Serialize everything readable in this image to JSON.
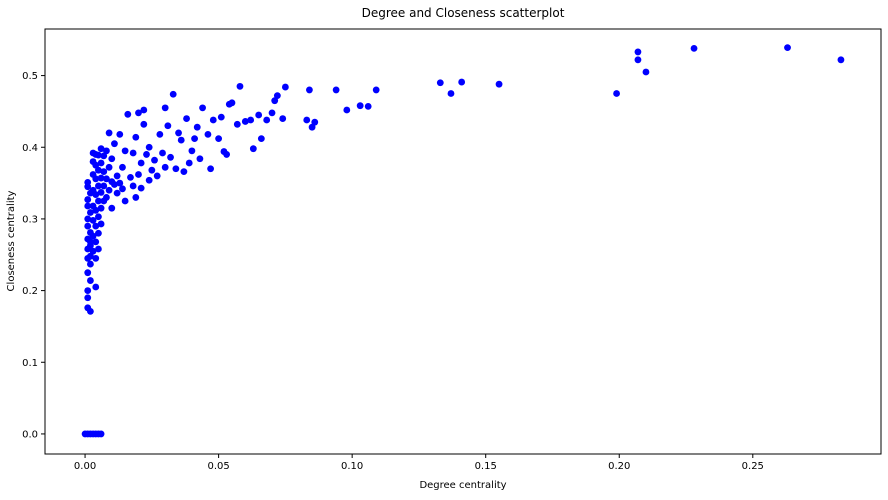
{
  "chart_data": {
    "type": "scatter",
    "title": "Degree and Closeness scatterplot",
    "xlabel": "Degree centrality",
    "ylabel": "Closeness centrality",
    "xlim": [
      -0.015,
      0.298
    ],
    "ylim": [
      -0.028,
      0.565
    ],
    "xticks": [
      0.0,
      0.05,
      0.1,
      0.15,
      0.2,
      0.25
    ],
    "xtick_labels": [
      "0.00",
      "0.05",
      "0.10",
      "0.15",
      "0.20",
      "0.25"
    ],
    "yticks": [
      0.0,
      0.1,
      0.2,
      0.3,
      0.4,
      0.5
    ],
    "ytick_labels": [
      "0.0",
      "0.1",
      "0.2",
      "0.3",
      "0.4",
      "0.5"
    ],
    "grid": false,
    "legend": "none",
    "colors": {
      "marker": "#0000ff",
      "axes": "#000000",
      "background": "#ffffff"
    },
    "series": [
      {
        "points": [
          [
            0.0,
            0.0
          ],
          [
            0.001,
            0.0
          ],
          [
            0.002,
            0.0
          ],
          [
            0.003,
            0.0
          ],
          [
            0.004,
            0.0
          ],
          [
            0.005,
            0.0
          ],
          [
            0.006,
            0.0
          ],
          [
            0.001,
            0.176
          ],
          [
            0.001,
            0.19
          ],
          [
            0.001,
            0.2
          ],
          [
            0.002,
            0.171
          ],
          [
            0.002,
            0.214
          ],
          [
            0.001,
            0.225
          ],
          [
            0.002,
            0.237
          ],
          [
            0.001,
            0.245
          ],
          [
            0.001,
            0.258
          ],
          [
            0.002,
            0.263
          ],
          [
            0.001,
            0.272
          ],
          [
            0.002,
            0.281
          ],
          [
            0.001,
            0.29
          ],
          [
            0.001,
            0.3
          ],
          [
            0.002,
            0.309
          ],
          [
            0.001,
            0.318
          ],
          [
            0.001,
            0.327
          ],
          [
            0.002,
            0.336
          ],
          [
            0.001,
            0.345
          ],
          [
            0.001,
            0.351
          ],
          [
            0.002,
            0.248
          ],
          [
            0.002,
            0.268
          ],
          [
            0.003,
            0.255
          ],
          [
            0.003,
            0.276
          ],
          [
            0.003,
            0.298
          ],
          [
            0.003,
            0.318
          ],
          [
            0.003,
            0.34
          ],
          [
            0.003,
            0.362
          ],
          [
            0.003,
            0.38
          ],
          [
            0.003,
            0.392
          ],
          [
            0.004,
            0.205
          ],
          [
            0.004,
            0.245
          ],
          [
            0.004,
            0.268
          ],
          [
            0.004,
            0.29
          ],
          [
            0.004,
            0.312
          ],
          [
            0.004,
            0.334
          ],
          [
            0.004,
            0.356
          ],
          [
            0.004,
            0.375
          ],
          [
            0.004,
            0.39
          ],
          [
            0.005,
            0.258
          ],
          [
            0.005,
            0.28
          ],
          [
            0.005,
            0.303
          ],
          [
            0.005,
            0.325
          ],
          [
            0.005,
            0.346
          ],
          [
            0.005,
            0.368
          ],
          [
            0.005,
            0.389
          ],
          [
            0.006,
            0.293
          ],
          [
            0.006,
            0.315
          ],
          [
            0.006,
            0.337
          ],
          [
            0.006,
            0.357
          ],
          [
            0.006,
            0.378
          ],
          [
            0.006,
            0.398
          ],
          [
            0.007,
            0.325
          ],
          [
            0.007,
            0.346
          ],
          [
            0.007,
            0.366
          ],
          [
            0.007,
            0.388
          ],
          [
            0.008,
            0.33
          ],
          [
            0.008,
            0.356
          ],
          [
            0.008,
            0.395
          ],
          [
            0.009,
            0.34
          ],
          [
            0.009,
            0.372
          ],
          [
            0.009,
            0.42
          ],
          [
            0.01,
            0.352
          ],
          [
            0.01,
            0.315
          ],
          [
            0.01,
            0.384
          ],
          [
            0.011,
            0.348
          ],
          [
            0.011,
            0.405
          ],
          [
            0.012,
            0.336
          ],
          [
            0.012,
            0.36
          ],
          [
            0.013,
            0.35
          ],
          [
            0.013,
            0.418
          ],
          [
            0.014,
            0.342
          ],
          [
            0.014,
            0.372
          ],
          [
            0.015,
            0.325
          ],
          [
            0.015,
            0.395
          ],
          [
            0.016,
            0.446
          ],
          [
            0.017,
            0.358
          ],
          [
            0.018,
            0.346
          ],
          [
            0.018,
            0.392
          ],
          [
            0.019,
            0.33
          ],
          [
            0.019,
            0.414
          ],
          [
            0.02,
            0.448
          ],
          [
            0.02,
            0.362
          ],
          [
            0.021,
            0.343
          ],
          [
            0.021,
            0.378
          ],
          [
            0.022,
            0.452
          ],
          [
            0.022,
            0.432
          ],
          [
            0.023,
            0.39
          ],
          [
            0.024,
            0.4
          ],
          [
            0.024,
            0.354
          ],
          [
            0.025,
            0.368
          ],
          [
            0.026,
            0.382
          ],
          [
            0.027,
            0.36
          ],
          [
            0.028,
            0.418
          ],
          [
            0.029,
            0.392
          ],
          [
            0.03,
            0.455
          ],
          [
            0.03,
            0.372
          ],
          [
            0.031,
            0.43
          ],
          [
            0.032,
            0.386
          ],
          [
            0.033,
            0.474
          ],
          [
            0.034,
            0.37
          ],
          [
            0.035,
            0.42
          ],
          [
            0.036,
            0.41
          ],
          [
            0.037,
            0.366
          ],
          [
            0.038,
            0.44
          ],
          [
            0.039,
            0.378
          ],
          [
            0.04,
            0.395
          ],
          [
            0.041,
            0.412
          ],
          [
            0.042,
            0.428
          ],
          [
            0.043,
            0.384
          ],
          [
            0.044,
            0.455
          ],
          [
            0.046,
            0.418
          ],
          [
            0.047,
            0.37
          ],
          [
            0.048,
            0.438
          ],
          [
            0.05,
            0.412
          ],
          [
            0.051,
            0.442
          ],
          [
            0.052,
            0.394
          ],
          [
            0.053,
            0.39
          ],
          [
            0.054,
            0.46
          ],
          [
            0.055,
            0.462
          ],
          [
            0.057,
            0.432
          ],
          [
            0.058,
            0.485
          ],
          [
            0.06,
            0.436
          ],
          [
            0.062,
            0.438
          ],
          [
            0.063,
            0.398
          ],
          [
            0.065,
            0.445
          ],
          [
            0.066,
            0.412
          ],
          [
            0.068,
            0.438
          ],
          [
            0.07,
            0.448
          ],
          [
            0.071,
            0.465
          ],
          [
            0.072,
            0.472
          ],
          [
            0.074,
            0.44
          ],
          [
            0.075,
            0.484
          ],
          [
            0.083,
            0.438
          ],
          [
            0.084,
            0.48
          ],
          [
            0.085,
            0.428
          ],
          [
            0.086,
            0.435
          ],
          [
            0.094,
            0.48
          ],
          [
            0.098,
            0.452
          ],
          [
            0.103,
            0.458
          ],
          [
            0.106,
            0.457
          ],
          [
            0.109,
            0.48
          ],
          [
            0.133,
            0.49
          ],
          [
            0.137,
            0.475
          ],
          [
            0.141,
            0.491
          ],
          [
            0.155,
            0.488
          ],
          [
            0.199,
            0.475
          ],
          [
            0.207,
            0.522
          ],
          [
            0.207,
            0.533
          ],
          [
            0.21,
            0.505
          ],
          [
            0.228,
            0.538
          ],
          [
            0.263,
            0.539
          ],
          [
            0.283,
            0.522
          ]
        ]
      }
    ]
  }
}
